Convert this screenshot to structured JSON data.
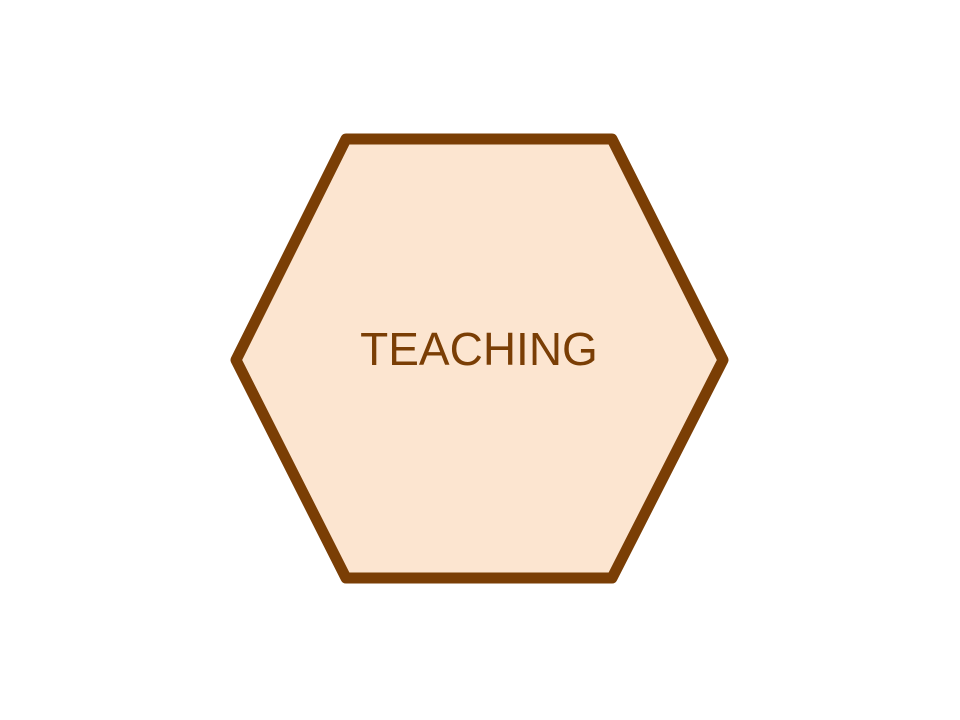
{
  "diagram": {
    "node": {
      "label": "TEACHING",
      "shape": "hexagon",
      "fill_color": "#FCE5D0",
      "stroke_color": "#7A3E05",
      "text_color": "#7A3E05"
    },
    "background_color": "#FFFFFF"
  }
}
